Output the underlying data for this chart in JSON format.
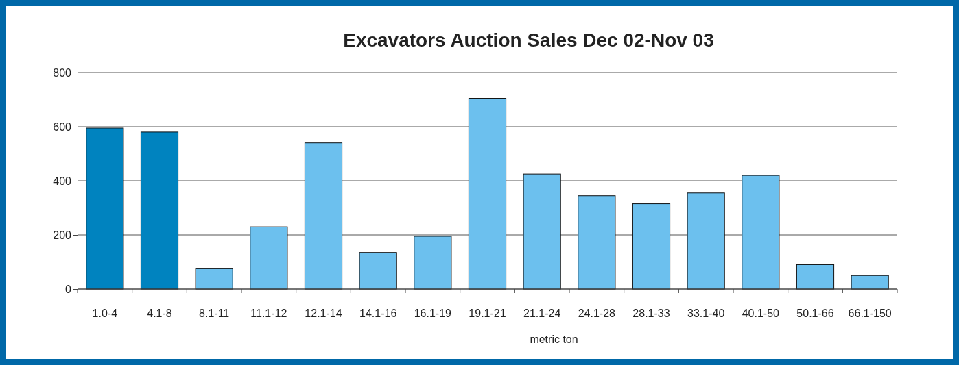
{
  "chart_data": {
    "type": "bar",
    "title": "Excavators Auction Sales Dec 02-Nov 03",
    "xlabel": "metric ton",
    "categories": [
      "1.0-4",
      "4.1-8",
      "8.1-11",
      "11.1-12",
      "12.1-14",
      "14.1-16",
      "16.1-19",
      "19.1-21",
      "21.1-24",
      "24.1-28",
      "28.1-33",
      "33.1-40",
      "40.1-50",
      "50.1-66",
      "66.1-150"
    ],
    "values": [
      595,
      580,
      75,
      230,
      540,
      135,
      195,
      705,
      425,
      345,
      315,
      355,
      420,
      90,
      50
    ],
    "colors": [
      "#0083bf",
      "#0083bf",
      "#6cc0ee",
      "#6cc0ee",
      "#6cc0ee",
      "#6cc0ee",
      "#6cc0ee",
      "#6cc0ee",
      "#6cc0ee",
      "#6cc0ee",
      "#6cc0ee",
      "#6cc0ee",
      "#6cc0ee",
      "#6cc0ee",
      "#6cc0ee"
    ],
    "ylim": [
      0,
      800
    ],
    "yticks": [
      0,
      200,
      400,
      600,
      800
    ],
    "grid": "y"
  }
}
